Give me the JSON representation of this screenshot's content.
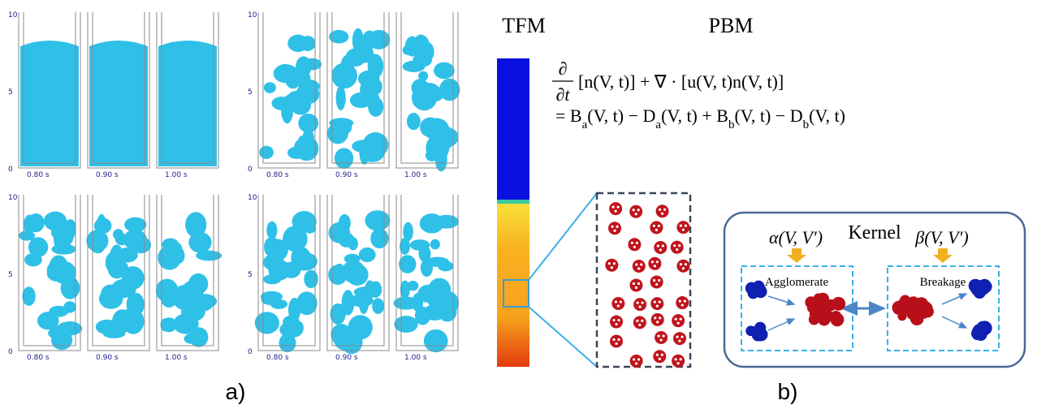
{
  "panels": [
    {
      "yticks": [
        "10",
        "5",
        "0"
      ],
      "times": [
        "0.80 s",
        "0.90 s",
        "1.00 s"
      ]
    },
    {
      "yticks": [
        "10",
        "5",
        "0"
      ],
      "times": [
        "0.80 s",
        "0.90 s",
        "1.00 s"
      ]
    },
    {
      "yticks": [
        "10",
        "5",
        "0"
      ],
      "times": [
        "0.80 s",
        "0.90 s",
        "1.00 s"
      ]
    },
    {
      "yticks": [
        "10",
        "5",
        "0"
      ],
      "times": [
        "0.80 s",
        "0.90 s",
        "1.00 s"
      ]
    }
  ],
  "tfm": "TFM",
  "pbm": "PBM",
  "equation": {
    "num": "∂",
    "den": "∂t",
    "line1": "[n(V, t)] + ∇ · [u(V, t)n(V, t)]",
    "line2": [
      "= B",
      "a",
      "(V, t) − D",
      "a",
      "(V, t) + B",
      "b",
      "(V, t) − D",
      "b",
      "(V, t)"
    ]
  },
  "kernel": {
    "title": "Kernel",
    "alpha": "α(V, V′)",
    "beta": "β(V, V′)",
    "agglomerate": "Agglomerate",
    "breakage": "Breakage"
  },
  "labels": {
    "a": "a)",
    "b": "b)"
  }
}
